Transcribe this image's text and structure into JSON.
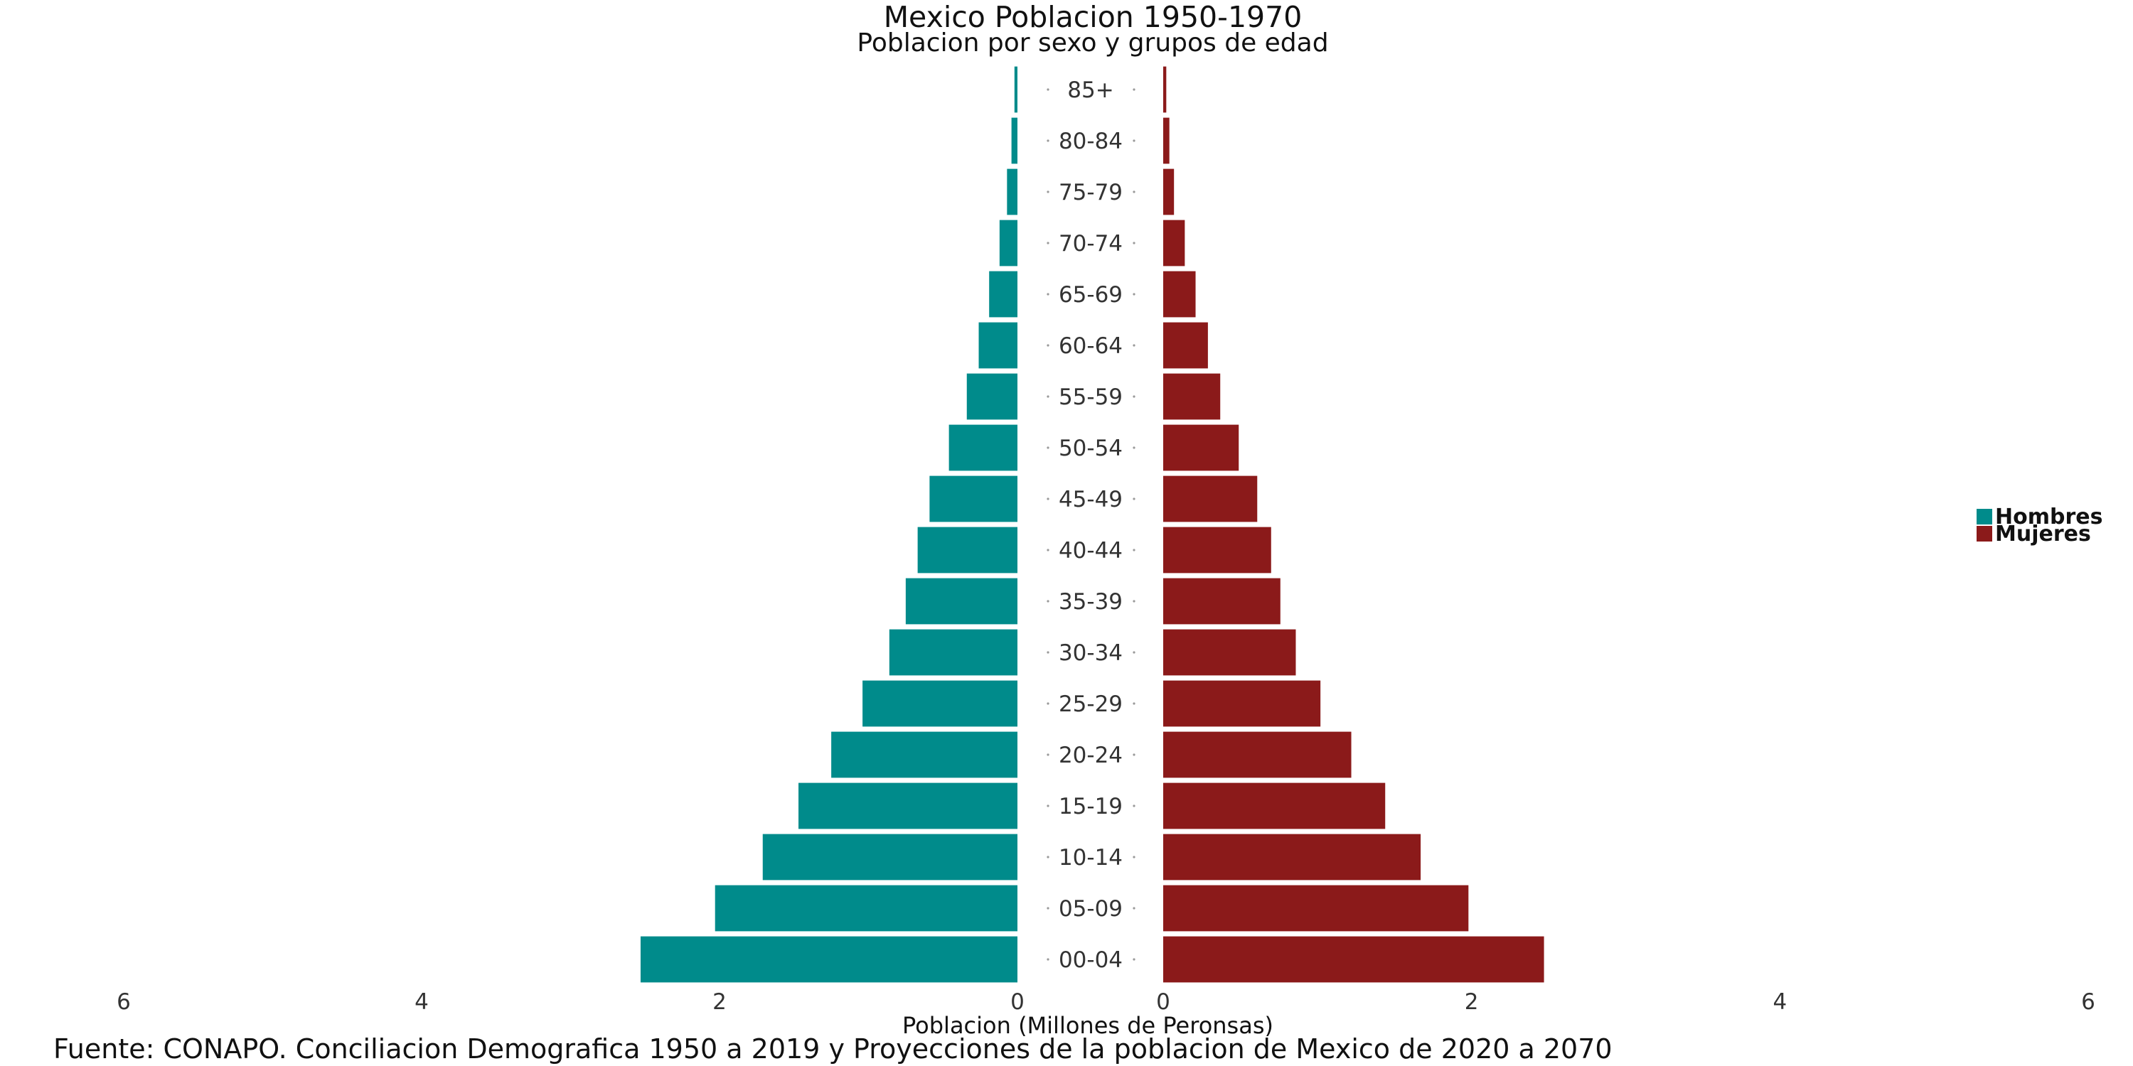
{
  "chart_data": {
    "type": "bar",
    "title": "Mexico Poblacion 1950-1970",
    "subtitle": "Poblacion por sexo y grupos de edad",
    "xlabel": "Poblacion (Millones de Peronsas)",
    "caption": "Fuente: CONAPO. Conciliacion Demografica 1950 a 2019 y Proyecciones de la poblacion de Mexico de 2020 a 2070",
    "categories": [
      "00-04",
      "05-09",
      "10-14",
      "15-19",
      "20-24",
      "25-29",
      "30-34",
      "35-39",
      "40-44",
      "45-49",
      "50-54",
      "55-59",
      "60-64",
      "65-69",
      "70-74",
      "75-79",
      "80-84",
      "85+"
    ],
    "series": [
      {
        "name": "Hombres",
        "color": "#008B8B",
        "side": "left",
        "values": [
          2.53,
          2.03,
          1.71,
          1.47,
          1.25,
          1.04,
          0.86,
          0.75,
          0.67,
          0.59,
          0.46,
          0.34,
          0.26,
          0.19,
          0.12,
          0.07,
          0.04,
          0.02
        ]
      },
      {
        "name": "Mujeres",
        "color": "#8B1A1A",
        "side": "right",
        "values": [
          2.47,
          1.98,
          1.67,
          1.44,
          1.22,
          1.02,
          0.86,
          0.76,
          0.7,
          0.61,
          0.49,
          0.37,
          0.29,
          0.21,
          0.14,
          0.07,
          0.04,
          0.02
        ]
      }
    ],
    "xlim": [
      0,
      6
    ],
    "xticks_left": [
      "6",
      "4",
      "2",
      "0"
    ],
    "xticks_right": [
      "0",
      "2",
      "4",
      "6"
    ],
    "legend_position": "right",
    "grid": false
  }
}
